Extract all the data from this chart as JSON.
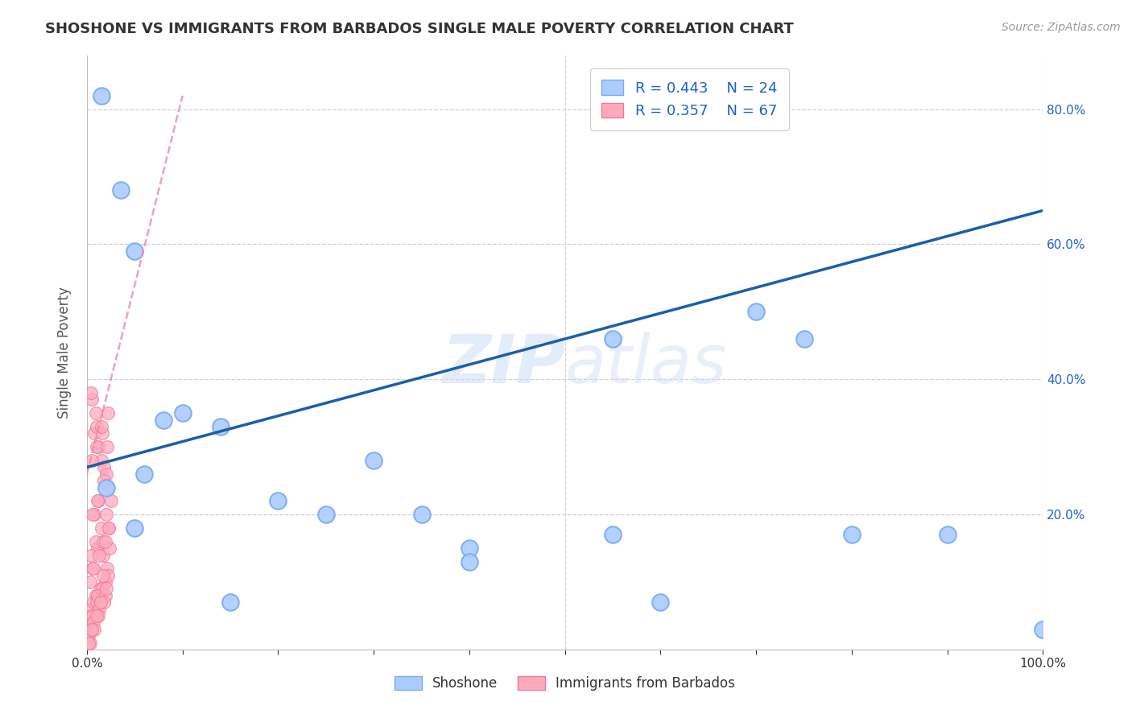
{
  "title": "SHOSHONE VS IMMIGRANTS FROM BARBADOS SINGLE MALE POVERTY CORRELATION CHART",
  "source": "Source: ZipAtlas.com",
  "ylabel": "Single Male Poverty",
  "xlim": [
    0,
    100
  ],
  "ylim": [
    0,
    88
  ],
  "background_color": "#ffffff",
  "grid_color": "#d0d0d0",
  "watermark": "ZIPatlas",
  "shoshone_color": "#aaccff",
  "barbados_color": "#ffaabb",
  "shoshone_edge": "#7aabee",
  "barbados_edge": "#ee7799",
  "trend_blue": "#1a5faa",
  "trend_pink": "#ee88aa",
  "shoshone_x": [
    1.5,
    3.5,
    5,
    8,
    10,
    14,
    2,
    6,
    20,
    30,
    40,
    55,
    70,
    80,
    100,
    75,
    55,
    40,
    35,
    25,
    15,
    5,
    90,
    60
  ],
  "shoshone_y": [
    82,
    68,
    59,
    34,
    35,
    33,
    24,
    26,
    22,
    28,
    15,
    17,
    50,
    17,
    3,
    46,
    46,
    13,
    20,
    20,
    7,
    18,
    17,
    7
  ],
  "barbados_x": [
    0.5,
    0.8,
    1.0,
    1.2,
    1.5,
    1.8,
    2.0,
    2.2,
    2.5,
    0.3,
    0.6,
    1.1,
    1.7,
    2.3,
    0.4,
    0.9,
    1.4,
    1.9,
    0.2,
    0.7,
    1.3,
    2.1,
    0.1,
    0.5,
    1.0,
    1.6,
    2.2,
    0.8,
    1.2,
    1.8,
    0.3,
    0.6,
    1.1,
    1.7,
    2.4,
    0.4,
    0.9,
    1.5,
    2.0,
    0.2,
    0.7,
    1.3,
    1.9,
    0.5,
    1.0,
    1.6,
    2.2,
    0.3,
    0.8,
    1.2,
    1.8,
    0.4,
    0.9,
    1.5,
    2.1,
    0.6,
    1.1,
    1.7,
    2.3,
    0.2,
    0.5,
    1.0,
    1.4,
    2.0,
    0.7,
    1.3,
    1.9
  ],
  "barbados_y": [
    37,
    32,
    33,
    30,
    28,
    27,
    26,
    24,
    22,
    10,
    12,
    15,
    14,
    18,
    6,
    8,
    9,
    10,
    4,
    7,
    7,
    12,
    2,
    5,
    7,
    9,
    11,
    20,
    22,
    25,
    3,
    5,
    8,
    11,
    15,
    14,
    16,
    18,
    20,
    2,
    4,
    6,
    8,
    28,
    30,
    32,
    35,
    1,
    3,
    5,
    7,
    38,
    35,
    33,
    30,
    20,
    22,
    16,
    18,
    1,
    3,
    5,
    7,
    9,
    12,
    14,
    16
  ],
  "shoshone_trend_x": [
    0,
    100
  ],
  "shoshone_trend_y": [
    27,
    65
  ],
  "barbados_trend_x": [
    0,
    10
  ],
  "barbados_trend_y": [
    26,
    82
  ],
  "xtick_positions": [
    0,
    10,
    20,
    30,
    40,
    50,
    60,
    70,
    80,
    90,
    100
  ],
  "ytick_right_positions": [
    20,
    40,
    60,
    80
  ]
}
